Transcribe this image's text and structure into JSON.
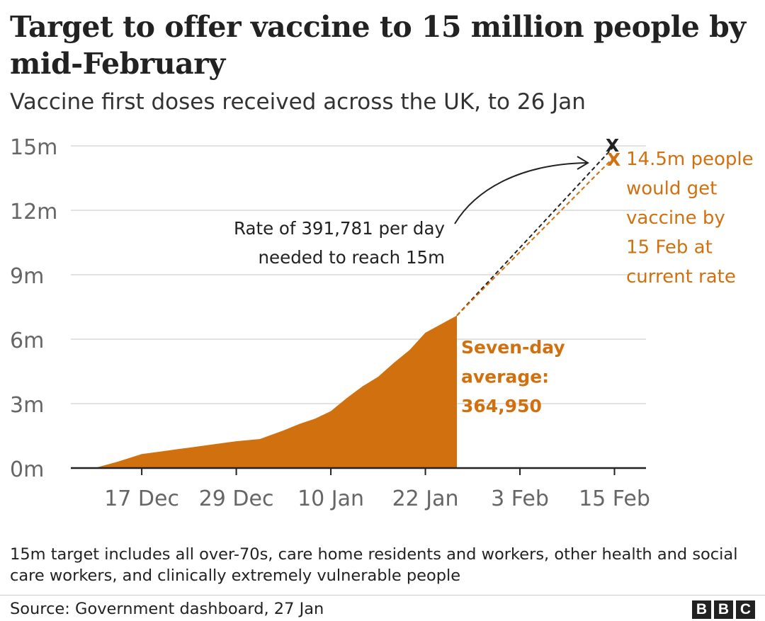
{
  "header": {
    "title": "Target to offer vaccine to 15 million people by mid-February",
    "subtitle": "Vaccine first doses received across the UK, to 26 Jan"
  },
  "footer": {
    "note": "15m target includes all over-70s, care home residents and workers, other health and social care workers, and clinically extremely vulnerable people",
    "source": "Source: Government dashboard, 27 Jan",
    "logo_letters": [
      "B",
      "B",
      "C"
    ]
  },
  "annotations": {
    "rate_needed_line1": "Rate of 391,781 per day",
    "rate_needed_line2": "needed to reach 15m",
    "current_rate_lines": [
      "14.5m people",
      "would get",
      "vaccine by",
      "15 Feb at",
      "current rate"
    ],
    "seven_day_lines": [
      "Seven-day",
      "average:",
      "364,950"
    ],
    "target_marker": "X",
    "projection_marker": "X"
  },
  "colors": {
    "area": "#d1700e",
    "projection": "#d1700e",
    "target_line": "#222222",
    "grid": "#d9d9d9",
    "axis": "#222222",
    "tick_text": "#666666"
  },
  "chart_data": {
    "type": "area",
    "title": "Target to offer vaccine to 15 million people by mid-February",
    "subtitle": "Vaccine first doses received across the UK, to 26 Jan",
    "xlabel": "",
    "ylabel": "",
    "x_ticks": [
      "17 Dec",
      "29 Dec",
      "10 Jan",
      "22 Jan",
      "3 Feb",
      "15 Feb"
    ],
    "x_tick_dates": [
      "2020-12-17",
      "2020-12-29",
      "2021-01-10",
      "2021-01-22",
      "2021-02-03",
      "2021-02-15"
    ],
    "xlim": [
      "2020-12-08",
      "2021-02-19"
    ],
    "y_ticks": [
      0,
      3000000,
      6000000,
      9000000,
      12000000,
      15000000
    ],
    "y_tick_labels": [
      "0m",
      "3m",
      "6m",
      "9m",
      "12m",
      "15m"
    ],
    "ylim": [
      0,
      15000000
    ],
    "grid": true,
    "series": [
      {
        "name": "Vaccine first doses received",
        "x": [
          "2020-12-11",
          "2020-12-14",
          "2020-12-17",
          "2020-12-20",
          "2020-12-23",
          "2020-12-26",
          "2020-12-29",
          "2021-01-01",
          "2021-01-04",
          "2021-01-06",
          "2021-01-08",
          "2021-01-10",
          "2021-01-12",
          "2021-01-14",
          "2021-01-16",
          "2021-01-18",
          "2021-01-20",
          "2021-01-22",
          "2021-01-24",
          "2021-01-26"
        ],
        "y": [
          0,
          300000,
          650000,
          800000,
          950000,
          1100000,
          1250000,
          1350000,
          1750000,
          2050000,
          2300000,
          2650000,
          3250000,
          3800000,
          4250000,
          4900000,
          5500000,
          6300000,
          6700000,
          7100000
        ]
      },
      {
        "name": "Rate of 391,781 per day needed to reach 15m",
        "x": [
          "2021-01-26",
          "2021-02-15"
        ],
        "y": [
          7100000,
          15000000
        ]
      },
      {
        "name": "Seven-day average: 364,950",
        "x": [
          "2021-01-26",
          "2021-02-15"
        ],
        "y": [
          7100000,
          14500000
        ]
      }
    ]
  }
}
